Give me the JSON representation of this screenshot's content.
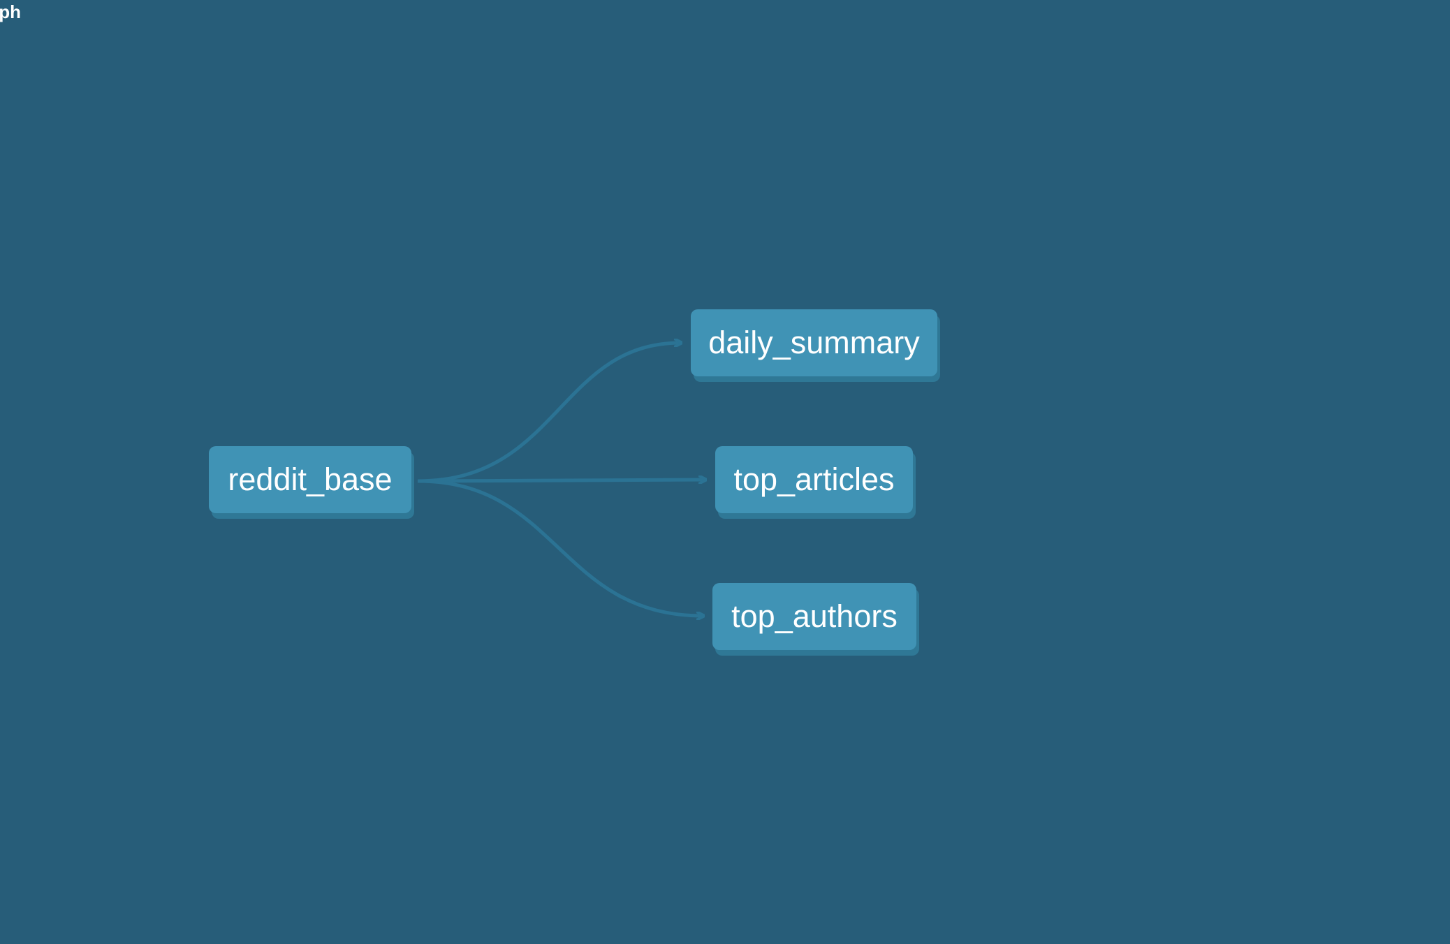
{
  "header": {
    "title": "ph"
  },
  "graph": {
    "nodes": [
      {
        "id": "reddit_base",
        "label": "reddit_base"
      },
      {
        "id": "daily_summary",
        "label": "daily_summary"
      },
      {
        "id": "top_articles",
        "label": "top_articles"
      },
      {
        "id": "top_authors",
        "label": "top_authors"
      }
    ],
    "edges": [
      {
        "from": "reddit_base",
        "to": "daily_summary"
      },
      {
        "from": "reddit_base",
        "to": "top_articles"
      },
      {
        "from": "reddit_base",
        "to": "top_authors"
      }
    ]
  },
  "colors": {
    "background": "#275d79",
    "node_fill": "#4093b5",
    "node_shadow": "#2f7896",
    "edge": "#2b7394",
    "text": "#ffffff"
  }
}
